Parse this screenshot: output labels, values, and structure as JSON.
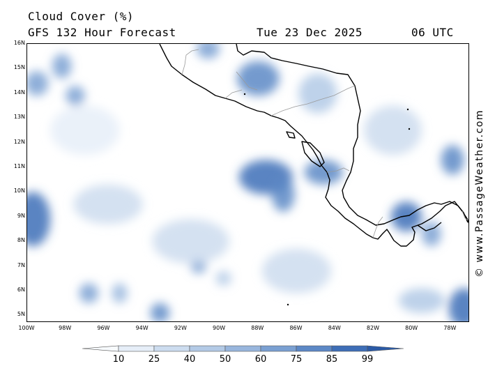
{
  "header": {
    "title": "Cloud Cover (%)",
    "subtitle": "GFS 132 Hour Forecast",
    "date": "Tue 23 Dec 2025",
    "utc": "06 UTC"
  },
  "credit": "© www.PassageWeather.com",
  "map": {
    "lon_range": [
      -100,
      -77
    ],
    "lat_range": [
      4.7,
      16
    ],
    "lat_labels": [
      "16N",
      "15N",
      "14N",
      "13N",
      "12N",
      "11N",
      "10N",
      "9N",
      "8N",
      "7N",
      "6N",
      "5N"
    ],
    "lon_labels": [
      "100W",
      "98W",
      "96W",
      "94W",
      "92W",
      "90W",
      "88W",
      "86W",
      "84W",
      "82W",
      "80W",
      "78W"
    ],
    "cloud_cells": [
      {
        "lon": -99.7,
        "lat": 8.9,
        "rx": 0.9,
        "ry": 1.1,
        "level": 85
      },
      {
        "lon": -99.5,
        "lat": 14.4,
        "rx": 0.6,
        "ry": 0.5,
        "level": 60
      },
      {
        "lon": -98.2,
        "lat": 15.1,
        "rx": 0.5,
        "ry": 0.5,
        "level": 60
      },
      {
        "lon": -97.5,
        "lat": 13.9,
        "rx": 0.5,
        "ry": 0.4,
        "level": 60
      },
      {
        "lon": -96.8,
        "lat": 5.9,
        "rx": 0.5,
        "ry": 0.4,
        "level": 60
      },
      {
        "lon": -95.2,
        "lat": 5.9,
        "rx": 0.4,
        "ry": 0.4,
        "level": 50
      },
      {
        "lon": -93.1,
        "lat": 5.1,
        "rx": 0.5,
        "ry": 0.4,
        "level": 75
      },
      {
        "lon": -91.1,
        "lat": 7.0,
        "rx": 0.4,
        "ry": 0.3,
        "level": 60
      },
      {
        "lon": -89.8,
        "lat": 6.5,
        "rx": 0.4,
        "ry": 0.3,
        "level": 40
      },
      {
        "lon": -90.6,
        "lat": 15.8,
        "rx": 0.6,
        "ry": 0.4,
        "level": 60
      },
      {
        "lon": -88.0,
        "lat": 14.6,
        "rx": 1.1,
        "ry": 0.7,
        "level": 75
      },
      {
        "lon": -87.6,
        "lat": 10.6,
        "rx": 1.4,
        "ry": 0.7,
        "level": 85
      },
      {
        "lon": -86.7,
        "lat": 9.9,
        "rx": 0.6,
        "ry": 0.7,
        "level": 75
      },
      {
        "lon": -84.6,
        "lat": 10.8,
        "rx": 1.0,
        "ry": 0.5,
        "level": 75
      },
      {
        "lon": -84.9,
        "lat": 14.0,
        "rx": 1.0,
        "ry": 0.8,
        "level": 40
      },
      {
        "lon": -80.3,
        "lat": 9.0,
        "rx": 0.8,
        "ry": 0.6,
        "level": 85
      },
      {
        "lon": -79.0,
        "lat": 8.3,
        "rx": 0.5,
        "ry": 0.5,
        "level": 60
      },
      {
        "lon": -77.9,
        "lat": 11.3,
        "rx": 0.6,
        "ry": 0.6,
        "level": 75
      },
      {
        "lon": -77.3,
        "lat": 5.3,
        "rx": 0.8,
        "ry": 0.8,
        "level": 85
      },
      {
        "lon": -79.5,
        "lat": 5.6,
        "rx": 1.2,
        "ry": 0.5,
        "level": 40
      },
      {
        "lon": -95.8,
        "lat": 9.5,
        "rx": 1.8,
        "ry": 0.8,
        "level": 25
      },
      {
        "lon": -91.5,
        "lat": 8.0,
        "rx": 2.0,
        "ry": 0.9,
        "level": 25
      },
      {
        "lon": -86.0,
        "lat": 6.8,
        "rx": 1.8,
        "ry": 0.9,
        "level": 25
      },
      {
        "lon": -81.0,
        "lat": 12.5,
        "rx": 1.5,
        "ry": 1.0,
        "level": 25
      },
      {
        "lon": -97.0,
        "lat": 12.5,
        "rx": 1.8,
        "ry": 1.0,
        "level": 15
      }
    ]
  },
  "colorbar": {
    "labels": [
      "10",
      "25",
      "40",
      "50",
      "60",
      "75",
      "85",
      "99"
    ],
    "colors": [
      "#f7fafd",
      "#e6eef8",
      "#ccdcef",
      "#b3cae6",
      "#98b6dd",
      "#7aa0d2",
      "#5c88c6",
      "#3d6eb7",
      "#2b5aa6"
    ]
  },
  "colors": {
    "land_line": "#000000",
    "border_line": "#9a9a9a"
  }
}
